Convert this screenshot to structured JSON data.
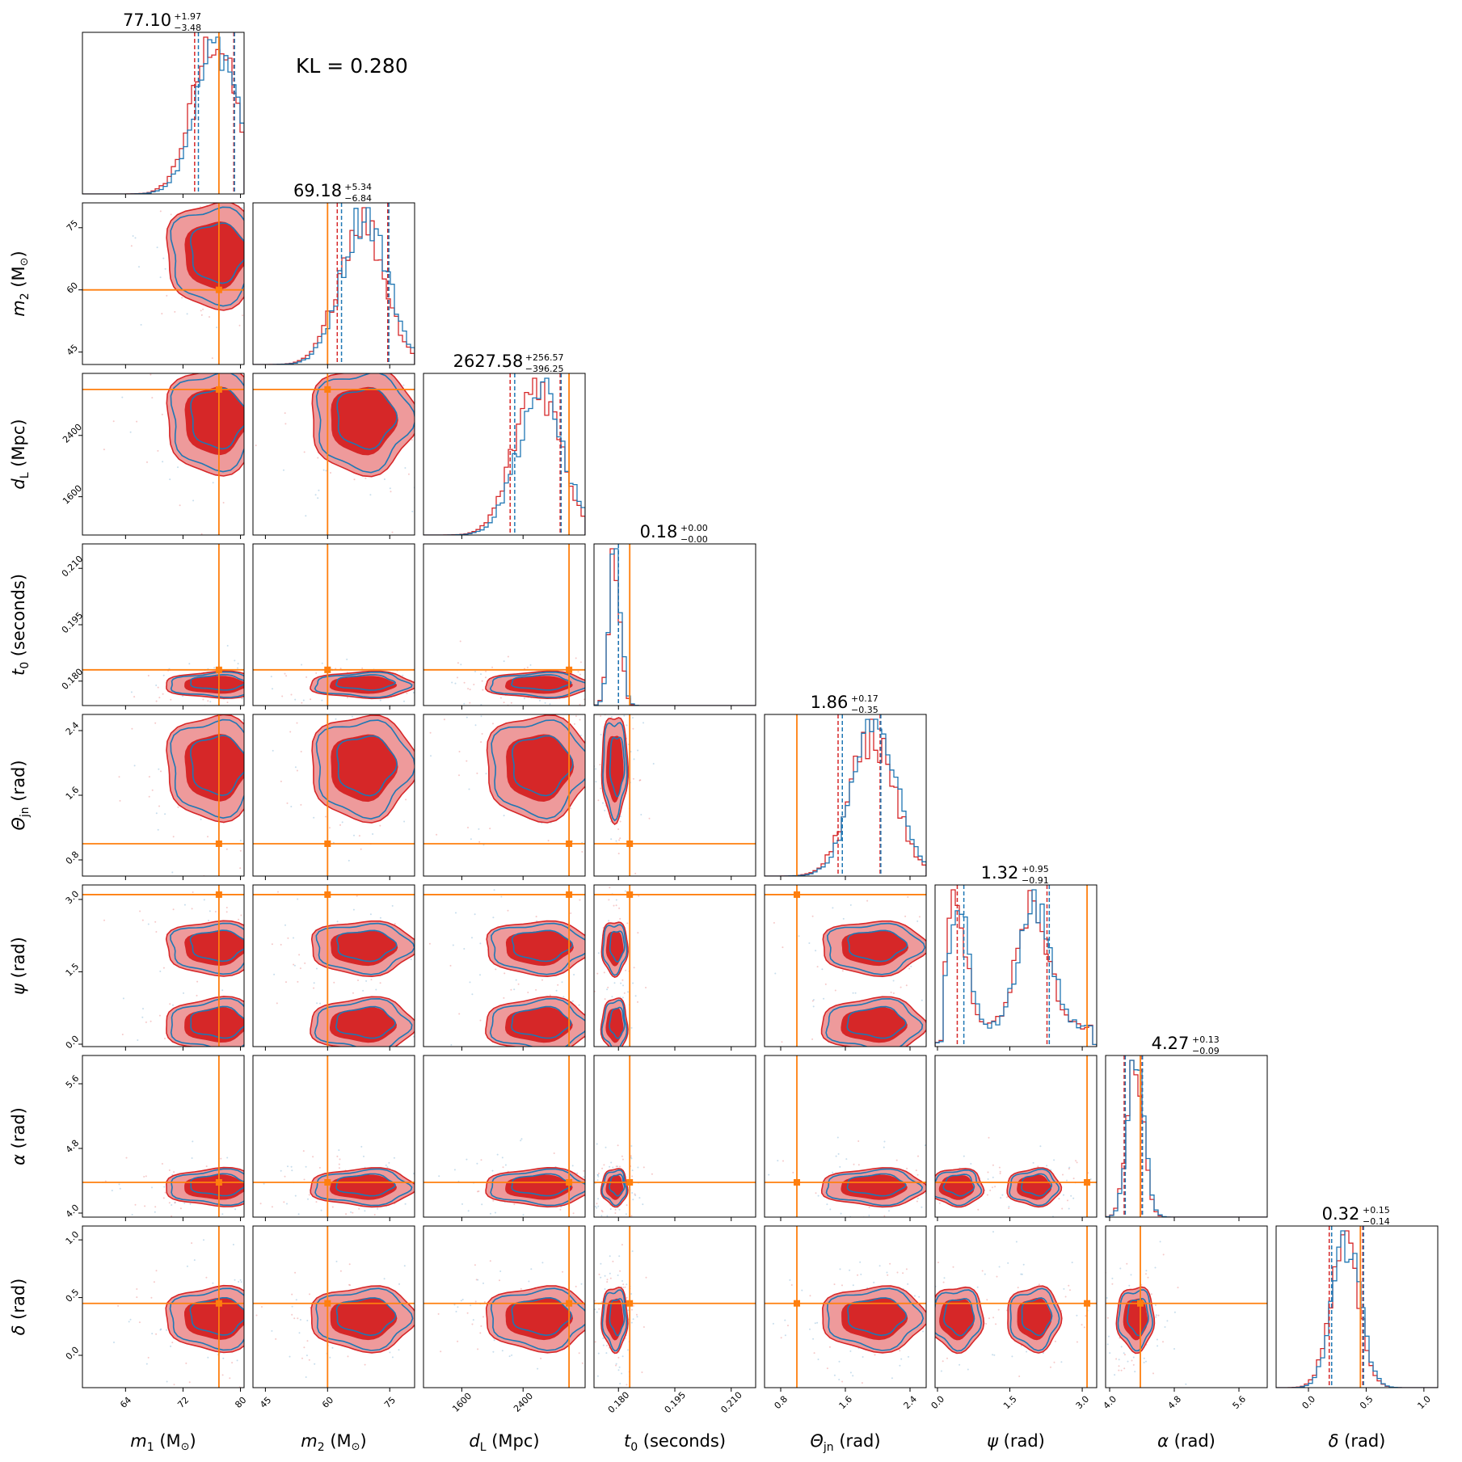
{
  "chart_data": {
    "type": "corner",
    "kl_label": "KL = 0.280",
    "colors": {
      "red": "#d62728",
      "redfill": "#ee9a9b",
      "blue": "#1f77b4",
      "truth": "#ff7f0e"
    },
    "series": [
      {
        "name": "",
        "color": "#d62728",
        "style": "filled contours + step histogram"
      },
      {
        "name": "",
        "color": "#1f77b4",
        "style": "contour lines + step histogram"
      }
    ],
    "parameters": [
      {
        "key": "m1",
        "label_main": "m",
        "label_sub": "1",
        "label_unit": "(M",
        "label_odot": "⊙",
        "label_close": ")",
        "range": [
          58,
          80.5
        ],
        "ticks": [
          "64",
          "72",
          "80"
        ],
        "truth": 77,
        "median": 77.1,
        "plus": "+1.97",
        "minus": "−3.48",
        "title_main": "77.10"
      },
      {
        "key": "m2",
        "label_main": "m",
        "label_sub": "2",
        "label_unit": "(M",
        "label_odot": "⊙",
        "label_close": ")",
        "range": [
          42,
          81
        ],
        "ticks": [
          "45",
          "60",
          "75"
        ],
        "truth": 60,
        "median": 69.18,
        "plus": "+5.34",
        "minus": "−6.84",
        "title_main": "69.18"
      },
      {
        "key": "dL",
        "label_main": "d",
        "label_sub": "L",
        "label_unit": "(Mpc)",
        "label_odot": "",
        "label_close": "",
        "range": [
          1100,
          3210
        ],
        "ticks": [
          "1600",
          "2400"
        ],
        "truth": 3000,
        "median": 2627.58,
        "plus": "+256.57",
        "minus": "−396.25",
        "title_main": "2627.58"
      },
      {
        "key": "t0",
        "label_main": "t",
        "label_sub": "0",
        "label_unit": "(seconds)",
        "label_odot": "",
        "label_close": "",
        "range": [
          0.1735,
          0.2165
        ],
        "ticks": [
          "0.180",
          "0.195",
          "0.210"
        ],
        "truth": 0.183,
        "median": 0.18,
        "plus": "+0.00",
        "minus": "−0.00",
        "title_main": "0.18"
      },
      {
        "key": "thetajn",
        "label_main": "Θ",
        "label_sub": "jn",
        "label_unit": "(rad)",
        "label_odot": "",
        "label_close": "",
        "range": [
          0.6,
          2.6
        ],
        "ticks": [
          "0.8",
          "1.6",
          "2.4"
        ],
        "truth": 1.0,
        "median": 1.86,
        "plus": "+0.17",
        "minus": "−0.35",
        "title_main": "1.86"
      },
      {
        "key": "psi",
        "label_main": "ψ",
        "label_sub": "",
        "label_unit": "(rad)",
        "label_odot": "",
        "label_close": "",
        "range": [
          -0.05,
          3.3
        ],
        "ticks": [
          "0.0",
          "1.5",
          "3.0"
        ],
        "truth": 3.1,
        "median": 1.32,
        "plus": "+0.95",
        "minus": "−0.91",
        "title_main": "1.32"
      },
      {
        "key": "alpha",
        "label_main": "α",
        "label_sub": "",
        "label_unit": "(rad)",
        "label_odot": "",
        "label_close": "",
        "range": [
          3.95,
          5.95
        ],
        "ticks": [
          "4.0",
          "4.8",
          "5.6"
        ],
        "truth": 4.38,
        "median": 4.27,
        "plus": "+0.13",
        "minus": "−0.09",
        "title_main": "4.27"
      },
      {
        "key": "delta",
        "label_main": "δ",
        "label_sub": "",
        "label_unit": "(rad)",
        "label_odot": "",
        "label_close": "",
        "range": [
          -0.28,
          1.12
        ],
        "ticks": [
          "0.0",
          "0.5",
          "1.0"
        ],
        "truth": 0.45,
        "median": 0.32,
        "plus": "+0.15",
        "minus": "−0.14",
        "title_main": "0.32"
      }
    ],
    "y_tick_labels": {
      "m2": [
        "45",
        "60",
        "75"
      ],
      "dL": [
        "1600",
        "2400"
      ],
      "t0": [
        "0.180",
        "0.195",
        "0.210"
      ],
      "thetajn": [
        "0.8",
        "1.6",
        "2.4"
      ],
      "psi": [
        "0.0",
        "1.5",
        "3.0"
      ],
      "alpha": [
        "4.0",
        "4.8",
        "5.6"
      ],
      "delta": [
        "0.0",
        "0.5",
        "1.0"
      ]
    },
    "posterior_center": {
      "m1": {
        "mean": 76.5,
        "sd": 3.0
      },
      "m2": {
        "mean": 68.5,
        "sd": 5.5
      },
      "dL": {
        "mean": 2600,
        "sd": 300
      },
      "t0": {
        "mean": 0.179,
        "sd": 0.0015
      },
      "thetajn": {
        "mean": 1.95,
        "sd": 0.28
      },
      "psi": {
        "modes": [
          0.4,
          2.0
        ],
        "sd": 0.35
      },
      "alpha": {
        "mean": 4.32,
        "sd": 0.1
      },
      "delta": {
        "mean": 0.32,
        "sd": 0.12
      }
    }
  }
}
